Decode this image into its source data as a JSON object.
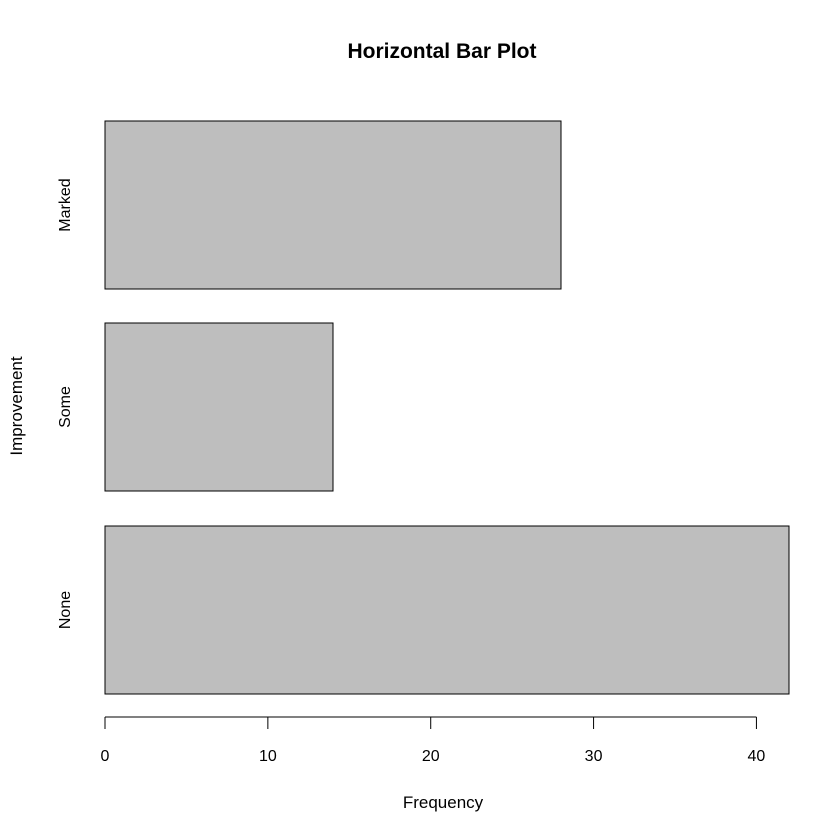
{
  "chart_data": {
    "type": "bar",
    "orientation": "horizontal",
    "title": "Horizontal Bar Plot",
    "xlabel": "Frequency",
    "ylabel": "Improvement",
    "categories": [
      "None",
      "Some",
      "Marked"
    ],
    "values": [
      42,
      14,
      28
    ],
    "xlim": [
      0,
      42
    ],
    "xticks": [
      0,
      10,
      20,
      30,
      40
    ],
    "xtick_labels": [
      "0",
      "10",
      "20",
      "30",
      "40"
    ],
    "bar_color": "#bebebe",
    "grid": false
  }
}
